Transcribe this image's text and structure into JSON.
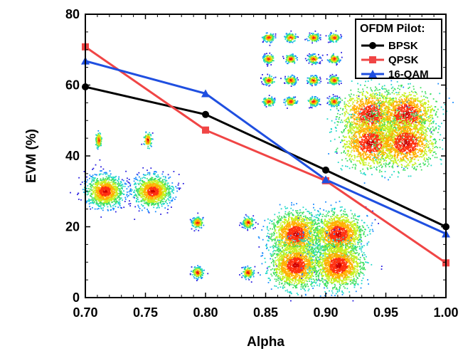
{
  "chart_data": {
    "type": "line",
    "xlabel": "Alpha",
    "ylabel": "EVM (%)",
    "xlim": [
      0.7,
      1.0
    ],
    "ylim": [
      0,
      80
    ],
    "xticks": [
      "0.70",
      "0.75",
      "0.80",
      "0.85",
      "0.90",
      "0.95",
      "1.00"
    ],
    "yticks": [
      "0",
      "20",
      "40",
      "60",
      "80"
    ],
    "legend": {
      "title": "OFDM Pilot:",
      "position": "top-right"
    },
    "series": [
      {
        "name": "BPSK",
        "color": "#000000",
        "marker": "circle",
        "x": [
          0.7,
          0.8,
          0.9,
          1.0
        ],
        "y": [
          59.5,
          51.7,
          36.0,
          20.0
        ]
      },
      {
        "name": "QPSK",
        "color": "#f04545",
        "marker": "square",
        "x": [
          0.7,
          0.8,
          0.9,
          1.0
        ],
        "y": [
          70.8,
          47.3,
          33.0,
          9.8
        ]
      },
      {
        "name": "16-QAM",
        "color": "#1f4fe0",
        "marker": "triangle",
        "x": [
          0.7,
          0.8,
          0.9,
          1.0
        ],
        "y": [
          66.8,
          57.6,
          33.3,
          18.0
        ]
      }
    ],
    "insets": [
      {
        "name": "constellation-2x2-noisy",
        "rows": 2,
        "cols": 2
      },
      {
        "name": "constellation-4x2-grid",
        "rows": 2,
        "cols": 4
      },
      {
        "name": "constellation-2x2-scattered",
        "rows": 2,
        "cols": 2
      },
      {
        "name": "constellation-4x4-clean",
        "rows": 4,
        "cols": 4
      },
      {
        "name": "constellation-dense-cloud",
        "rows": 1,
        "cols": 1
      }
    ]
  }
}
